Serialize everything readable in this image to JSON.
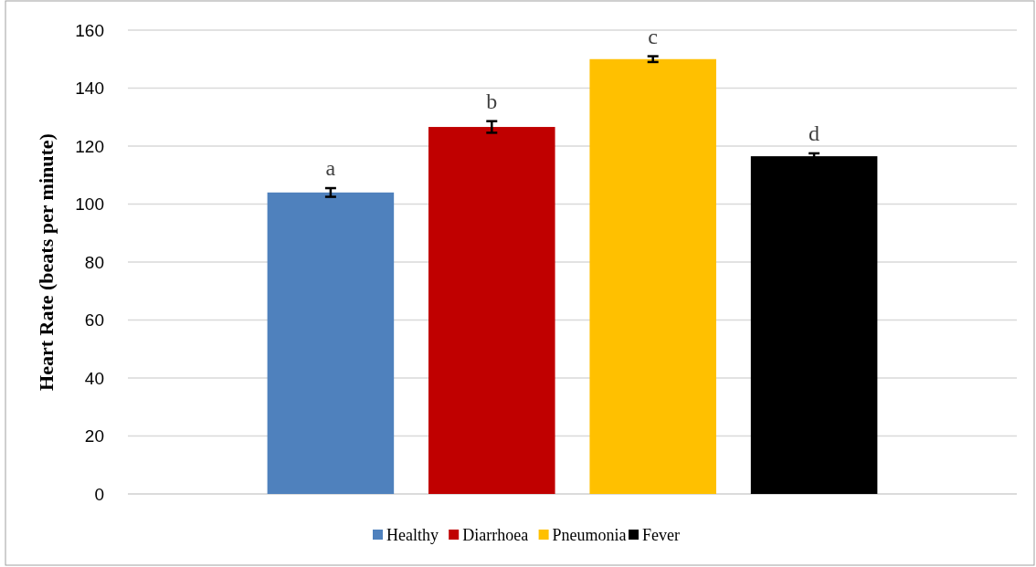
{
  "chart_data": {
    "type": "bar",
    "ylabel": "Heart Rate (beats per minute)",
    "categories": [
      null
    ],
    "series": [
      {
        "name": "Healthy",
        "color": "#4f81bd",
        "values": [
          104
        ],
        "errors": [
          1.5
        ]
      },
      {
        "name": "Diarrhoea",
        "color": "#c00000",
        "values": [
          126.6
        ],
        "errors": [
          2
        ]
      },
      {
        "name": "Pneumonia",
        "color": "#ffc000",
        "values": [
          150
        ],
        "errors": [
          1
        ]
      },
      {
        "name": "Fever",
        "color": "#000000",
        "values": [
          116.5
        ],
        "errors": [
          1
        ]
      }
    ],
    "annotations": [
      "a",
      "b",
      "c",
      "d"
    ],
    "ylim": [
      0,
      160
    ],
    "yticks": [
      0,
      20,
      40,
      60,
      80,
      100,
      120,
      140,
      160
    ],
    "grid": "y",
    "legend": "bottom"
  }
}
